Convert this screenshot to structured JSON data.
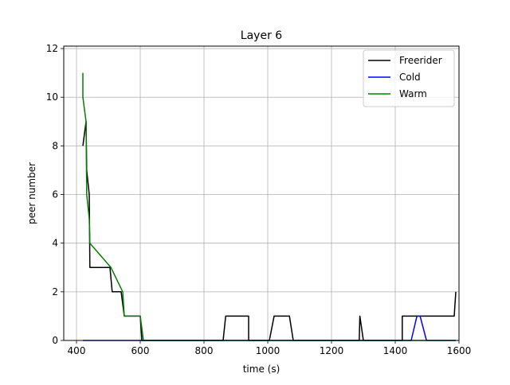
{
  "chart_data": {
    "type": "line",
    "title": "Layer 6",
    "xlabel": "time (s)",
    "ylabel": "peer number",
    "xlim": [
      360,
      1600
    ],
    "ylim": [
      0,
      12.1
    ],
    "xticks": [
      400,
      600,
      800,
      1000,
      1200,
      1400,
      1600
    ],
    "yticks": [
      0,
      2,
      4,
      6,
      8,
      10,
      12
    ],
    "grid": true,
    "legend_position": "top-right",
    "series": [
      {
        "name": "Freerider",
        "color": "#000000",
        "points": [
          [
            420,
            8
          ],
          [
            430,
            9
          ],
          [
            432,
            7
          ],
          [
            440,
            6
          ],
          [
            442,
            3
          ],
          [
            505,
            3
          ],
          [
            512,
            2
          ],
          [
            540,
            2
          ],
          [
            550,
            1
          ],
          [
            600,
            1
          ],
          [
            605,
            0
          ],
          [
            860,
            0
          ],
          [
            868,
            1
          ],
          [
            940,
            1
          ],
          [
            940,
            0
          ],
          [
            1005,
            0
          ],
          [
            1020,
            1
          ],
          [
            1068,
            1
          ],
          [
            1080,
            0
          ],
          [
            1287,
            0
          ],
          [
            1289,
            1
          ],
          [
            1300,
            0
          ],
          [
            1422,
            0
          ],
          [
            1422,
            1
          ],
          [
            1585,
            1
          ],
          [
            1590,
            2
          ]
        ]
      },
      {
        "name": "Cold",
        "color": "#0000ff",
        "points": [
          [
            420,
            0
          ],
          [
            1450,
            0
          ],
          [
            1468,
            1
          ],
          [
            1478,
            1
          ],
          [
            1498,
            0
          ],
          [
            1590,
            0
          ]
        ]
      },
      {
        "name": "Warm",
        "color": "#008000",
        "points": [
          [
            420,
            11
          ],
          [
            420,
            10
          ],
          [
            430,
            9
          ],
          [
            432,
            6
          ],
          [
            440,
            5
          ],
          [
            442,
            4
          ],
          [
            508,
            3
          ],
          [
            545,
            2
          ],
          [
            550,
            1
          ],
          [
            600,
            1
          ],
          [
            610,
            0
          ],
          [
            1590,
            0
          ]
        ]
      }
    ]
  }
}
